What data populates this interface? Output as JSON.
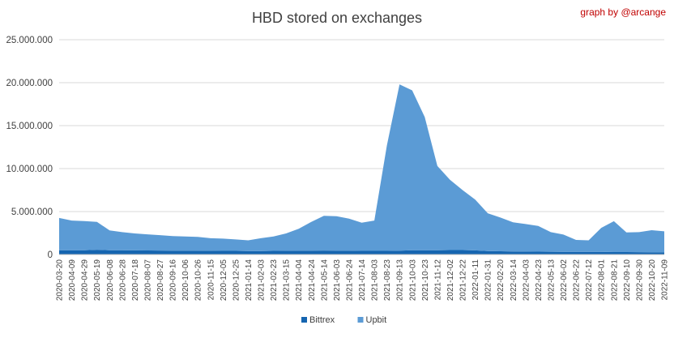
{
  "chart_data": {
    "type": "area",
    "title": "HBD stored on exchanges",
    "credit": "graph by @arcange",
    "ylim": [
      0,
      25000000
    ],
    "y_ticks": [
      "0",
      "5.000.000",
      "10.000.000",
      "15.000.000",
      "20.000.000",
      "25.000.000"
    ],
    "y_tick_values": [
      0,
      5000000,
      10000000,
      15000000,
      20000000,
      25000000
    ],
    "grid": true,
    "stacked": true,
    "legend_position": "bottom",
    "x_ticks": [
      "2020-03-20",
      "2020-04-09",
      "2020-04-29",
      "2020-05-19",
      "2020-06-08",
      "2020-06-28",
      "2020-07-18",
      "2020-08-07",
      "2020-08-27",
      "2020-09-16",
      "2020-10-06",
      "2020-10-26",
      "2020-11-15",
      "2020-12-05",
      "2020-12-25",
      "2021-01-14",
      "2021-02-03",
      "2021-02-23",
      "2021-03-15",
      "2021-04-04",
      "2021-04-24",
      "2021-05-14",
      "2021-06-03",
      "2021-06-24",
      "2021-07-14",
      "2021-08-03",
      "2021-08-23",
      "2021-09-13",
      "2021-10-03",
      "2021-10-23",
      "2021-11-12",
      "2021-12-02",
      "2021-12-22",
      "2022-01-11",
      "2022-01-31",
      "2022-02-20",
      "2022-03-14",
      "2022-04-03",
      "2022-04-23",
      "2022-05-13",
      "2022-06-02",
      "2022-06-22",
      "2022-07-12",
      "2022-08-01",
      "2022-08-21",
      "2022-09-10",
      "2022-09-30",
      "2022-10-20",
      "2022-11-09"
    ],
    "series": [
      {
        "name": "Bittrex",
        "color": "#1565b0",
        "values": [
          500000,
          500000,
          500000,
          560000,
          500000,
          490000,
          480000,
          470000,
          460000,
          450000,
          450000,
          440000,
          430000,
          420000,
          420000,
          410000,
          410000,
          420000,
          430000,
          440000,
          450000,
          460000,
          450000,
          440000,
          420000,
          420000,
          420000,
          450000,
          500000,
          500000,
          500000,
          520000,
          520000,
          480000,
          400000,
          380000,
          360000,
          340000,
          330000,
          320000,
          300000,
          300000,
          300000,
          300000,
          280000,
          280000,
          270000,
          260000,
          260000
        ]
      },
      {
        "name": "Upbit",
        "color": "#5b9bd5",
        "values": [
          3750000,
          3450000,
          3400000,
          3240000,
          2300000,
          2110000,
          1970000,
          1880000,
          1790000,
          1700000,
          1650000,
          1610000,
          1470000,
          1430000,
          1330000,
          1240000,
          1490000,
          1680000,
          2020000,
          2560000,
          3350000,
          4040000,
          4000000,
          3730000,
          3280000,
          3530000,
          12280000,
          19350000,
          18600000,
          15500000,
          9800000,
          8180000,
          6980000,
          5920000,
          4400000,
          3920000,
          3390000,
          3210000,
          3000000,
          2280000,
          2020000,
          1400000,
          1350000,
          2800000,
          3600000,
          2300000,
          2330000,
          2570000,
          2440000
        ]
      }
    ]
  }
}
